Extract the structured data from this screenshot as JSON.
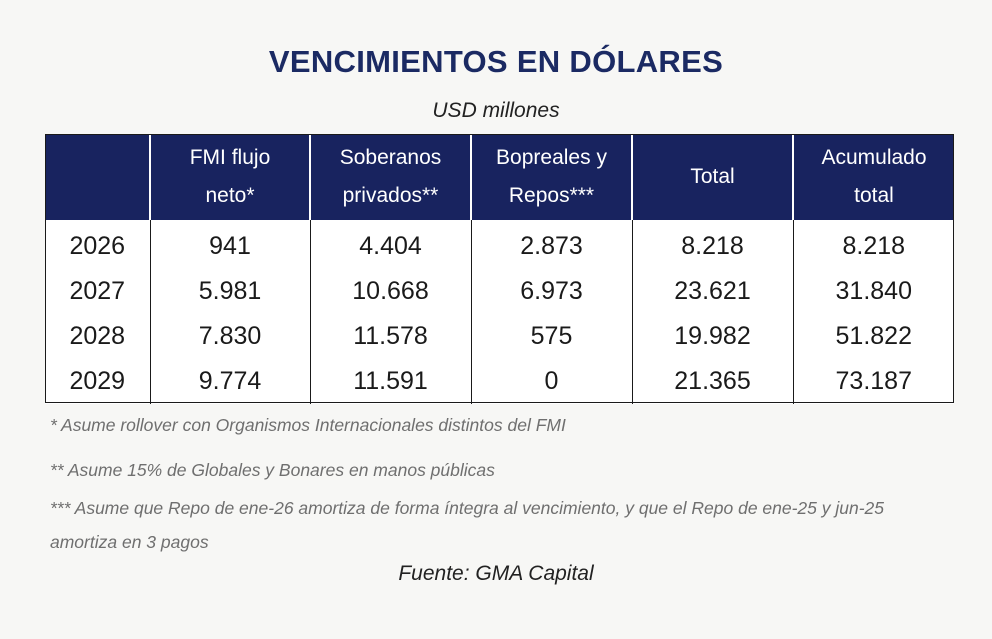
{
  "title": "VENCIMIENTOS EN DÓLARES",
  "subtitle": "USD millones",
  "table": {
    "headers": [
      "",
      "FMI flujo\nneto*",
      "Soberanos\nprivados**",
      "Bopreales y\nRepos***",
      "Total",
      "Acumulado\ntotal"
    ],
    "rows": [
      [
        "2026",
        "941",
        "4.404",
        "2.873",
        "8.218",
        "8.218"
      ],
      [
        "2027",
        "5.981",
        "10.668",
        "6.973",
        "23.621",
        "31.840"
      ],
      [
        "2028",
        "7.830",
        "11.578",
        "575",
        "19.982",
        "51.822"
      ],
      [
        "2029",
        "9.774",
        "11.591",
        "0",
        "21.365",
        "73.187"
      ]
    ]
  },
  "notes": [
    "* Asume rollover con Organismos Internacionales distintos del FMI",
    "** Asume 15% de Globales y Bonares en manos públicas",
    "*** Asume que Repo de ene-26 amortiza de forma íntegra al vencimiento, y que el Repo de ene-25 y jun-25 amortiza en 3 pagos"
  ],
  "source": "Fuente: GMA Capital",
  "colors": {
    "header_background": "#18235f",
    "title": "#1b2a63",
    "notes": "#6f6f6f"
  }
}
